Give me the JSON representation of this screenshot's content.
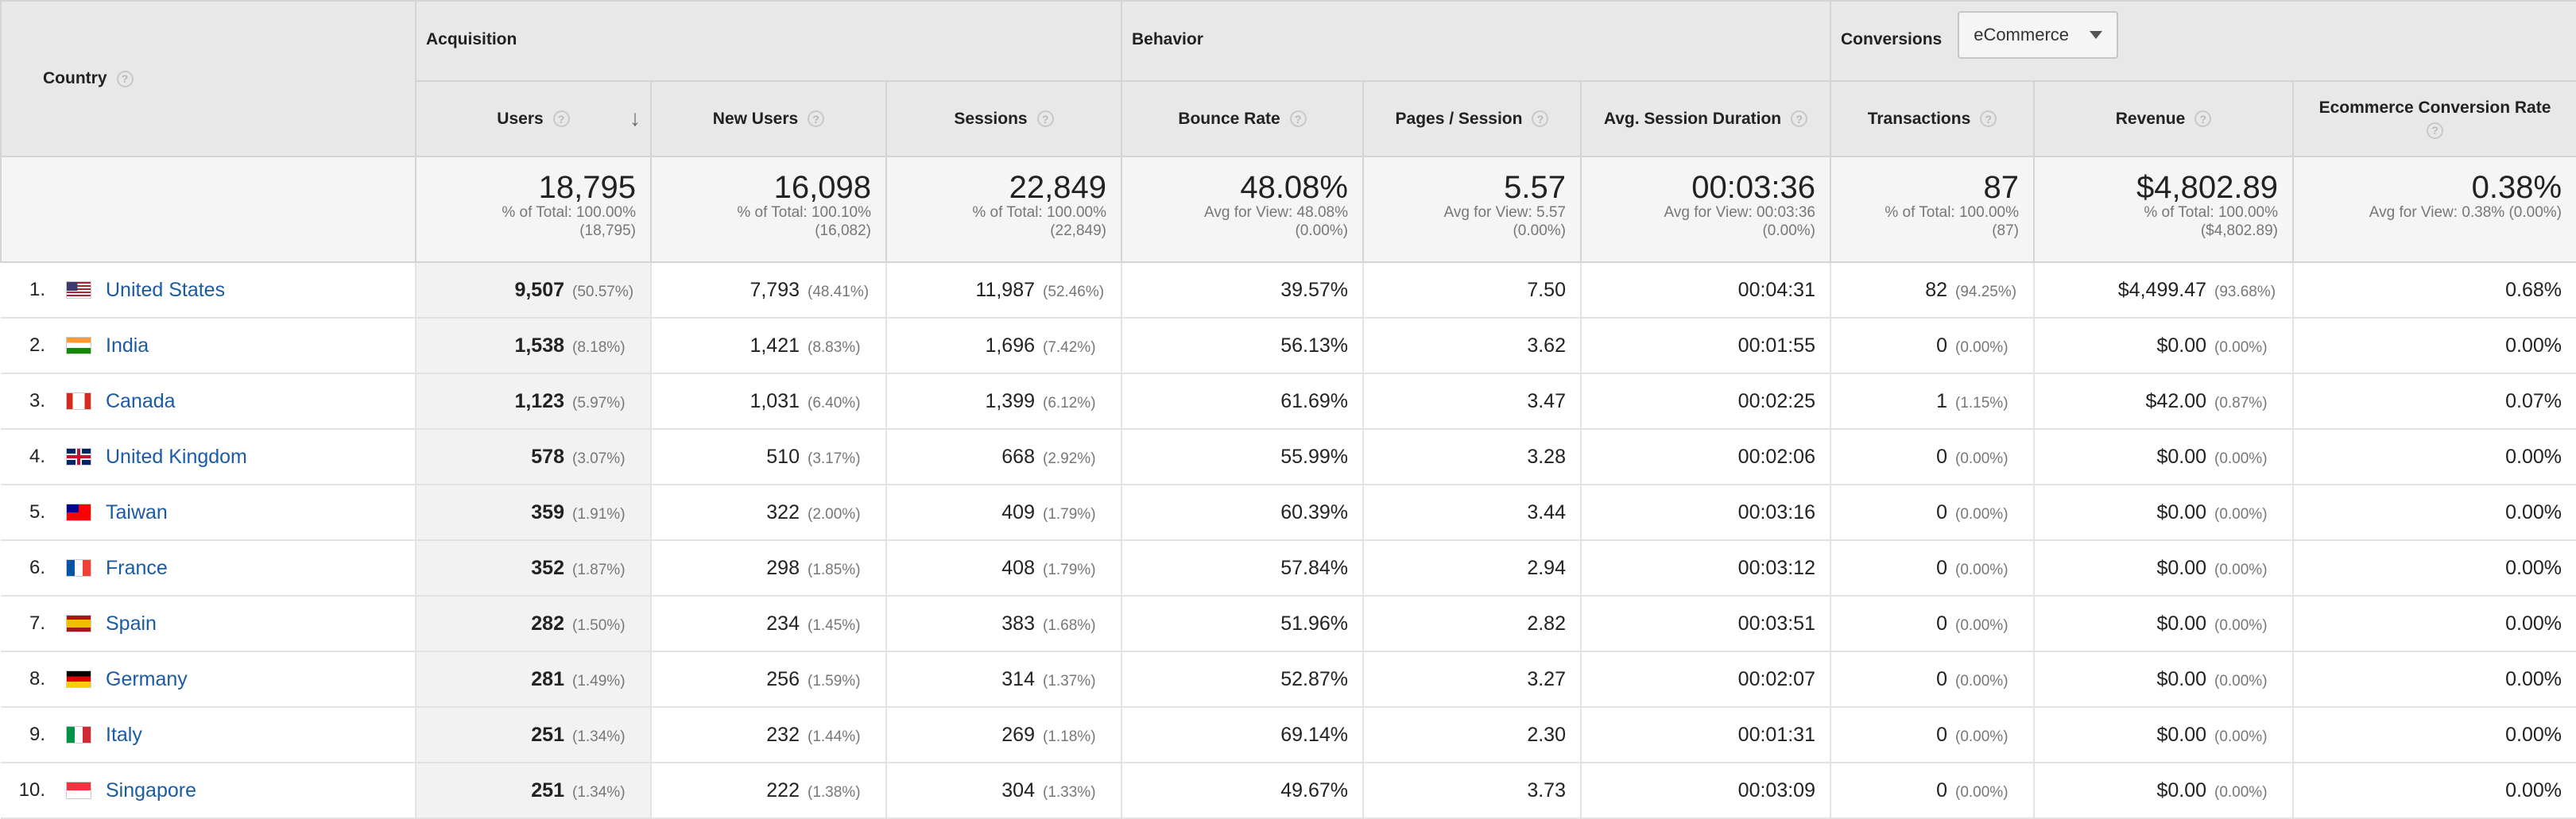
{
  "headers": {
    "country": "Country",
    "acquisition": "Acquisition",
    "behavior": "Behavior",
    "conversions": "Conversions",
    "conversion_select": "eCommerce",
    "help_glyph": "?",
    "sort_glyph": "↓",
    "metrics": {
      "users": "Users",
      "new_users": "New Users",
      "sessions": "Sessions",
      "bounce_rate": "Bounce Rate",
      "pages_session": "Pages / Session",
      "avg_session_duration": "Avg. Session Duration",
      "transactions": "Transactions",
      "revenue": "Revenue",
      "ecr": "Ecommerce Conversion Rate"
    }
  },
  "totals": {
    "users": {
      "value": "18,795",
      "sub1": "% of Total: 100.00%",
      "sub2": "(18,795)"
    },
    "new_users": {
      "value": "16,098",
      "sub1": "% of Total: 100.10%",
      "sub2": "(16,082)"
    },
    "sessions": {
      "value": "22,849",
      "sub1": "% of Total: 100.00%",
      "sub2": "(22,849)"
    },
    "bounce_rate": {
      "value": "48.08%",
      "sub1": "Avg for View: 48.08%",
      "sub2": "(0.00%)"
    },
    "pages_session": {
      "value": "5.57",
      "sub1": "Avg for View: 5.57",
      "sub2": "(0.00%)"
    },
    "avg_session_duration": {
      "value": "00:03:36",
      "sub1": "Avg for View: 00:03:36",
      "sub2": "(0.00%)"
    },
    "transactions": {
      "value": "87",
      "sub1": "% of Total: 100.00%",
      "sub2": "(87)"
    },
    "revenue": {
      "value": "$4,802.89",
      "sub1": "% of Total: 100.00%",
      "sub2": "($4,802.89)"
    },
    "ecr": {
      "value": "0.38%",
      "sub1": "Avg for View: 0.38% (0.00%)",
      "sub2": ""
    }
  },
  "rows": [
    {
      "index": "1.",
      "country": "United States",
      "flag": "us",
      "users": "9,507",
      "users_pct": "(50.57%)",
      "new_users": "7,793",
      "new_users_pct": "(48.41%)",
      "sessions": "11,987",
      "sessions_pct": "(52.46%)",
      "bounce_rate": "39.57%",
      "pages_session": "7.50",
      "avg_session_duration": "00:04:31",
      "transactions": "82",
      "transactions_pct": "(94.25%)",
      "revenue": "$4,499.47",
      "revenue_pct": "(93.68%)",
      "ecr": "0.68%"
    },
    {
      "index": "2.",
      "country": "India",
      "flag": "in",
      "users": "1,538",
      "users_pct": "(8.18%)",
      "new_users": "1,421",
      "new_users_pct": "(8.83%)",
      "sessions": "1,696",
      "sessions_pct": "(7.42%)",
      "bounce_rate": "56.13%",
      "pages_session": "3.62",
      "avg_session_duration": "00:01:55",
      "transactions": "0",
      "transactions_pct": "(0.00%)",
      "revenue": "$0.00",
      "revenue_pct": "(0.00%)",
      "ecr": "0.00%"
    },
    {
      "index": "3.",
      "country": "Canada",
      "flag": "ca",
      "users": "1,123",
      "users_pct": "(5.97%)",
      "new_users": "1,031",
      "new_users_pct": "(6.40%)",
      "sessions": "1,399",
      "sessions_pct": "(6.12%)",
      "bounce_rate": "61.69%",
      "pages_session": "3.47",
      "avg_session_duration": "00:02:25",
      "transactions": "1",
      "transactions_pct": "(1.15%)",
      "revenue": "$42.00",
      "revenue_pct": "(0.87%)",
      "ecr": "0.07%"
    },
    {
      "index": "4.",
      "country": "United Kingdom",
      "flag": "gb",
      "users": "578",
      "users_pct": "(3.07%)",
      "new_users": "510",
      "new_users_pct": "(3.17%)",
      "sessions": "668",
      "sessions_pct": "(2.92%)",
      "bounce_rate": "55.99%",
      "pages_session": "3.28",
      "avg_session_duration": "00:02:06",
      "transactions": "0",
      "transactions_pct": "(0.00%)",
      "revenue": "$0.00",
      "revenue_pct": "(0.00%)",
      "ecr": "0.00%"
    },
    {
      "index": "5.",
      "country": "Taiwan",
      "flag": "tw",
      "users": "359",
      "users_pct": "(1.91%)",
      "new_users": "322",
      "new_users_pct": "(2.00%)",
      "sessions": "409",
      "sessions_pct": "(1.79%)",
      "bounce_rate": "60.39%",
      "pages_session": "3.44",
      "avg_session_duration": "00:03:16",
      "transactions": "0",
      "transactions_pct": "(0.00%)",
      "revenue": "$0.00",
      "revenue_pct": "(0.00%)",
      "ecr": "0.00%"
    },
    {
      "index": "6.",
      "country": "France",
      "flag": "fr",
      "users": "352",
      "users_pct": "(1.87%)",
      "new_users": "298",
      "new_users_pct": "(1.85%)",
      "sessions": "408",
      "sessions_pct": "(1.79%)",
      "bounce_rate": "57.84%",
      "pages_session": "2.94",
      "avg_session_duration": "00:03:12",
      "transactions": "0",
      "transactions_pct": "(0.00%)",
      "revenue": "$0.00",
      "revenue_pct": "(0.00%)",
      "ecr": "0.00%"
    },
    {
      "index": "7.",
      "country": "Spain",
      "flag": "es",
      "users": "282",
      "users_pct": "(1.50%)",
      "new_users": "234",
      "new_users_pct": "(1.45%)",
      "sessions": "383",
      "sessions_pct": "(1.68%)",
      "bounce_rate": "51.96%",
      "pages_session": "2.82",
      "avg_session_duration": "00:03:51",
      "transactions": "0",
      "transactions_pct": "(0.00%)",
      "revenue": "$0.00",
      "revenue_pct": "(0.00%)",
      "ecr": "0.00%"
    },
    {
      "index": "8.",
      "country": "Germany",
      "flag": "de",
      "users": "281",
      "users_pct": "(1.49%)",
      "new_users": "256",
      "new_users_pct": "(1.59%)",
      "sessions": "314",
      "sessions_pct": "(1.37%)",
      "bounce_rate": "52.87%",
      "pages_session": "3.27",
      "avg_session_duration": "00:02:07",
      "transactions": "0",
      "transactions_pct": "(0.00%)",
      "revenue": "$0.00",
      "revenue_pct": "(0.00%)",
      "ecr": "0.00%"
    },
    {
      "index": "9.",
      "country": "Italy",
      "flag": "it",
      "users": "251",
      "users_pct": "(1.34%)",
      "new_users": "232",
      "new_users_pct": "(1.44%)",
      "sessions": "269",
      "sessions_pct": "(1.18%)",
      "bounce_rate": "69.14%",
      "pages_session": "2.30",
      "avg_session_duration": "00:01:31",
      "transactions": "0",
      "transactions_pct": "(0.00%)",
      "revenue": "$0.00",
      "revenue_pct": "(0.00%)",
      "ecr": "0.00%"
    },
    {
      "index": "10.",
      "country": "Singapore",
      "flag": "sg",
      "users": "251",
      "users_pct": "(1.34%)",
      "new_users": "222",
      "new_users_pct": "(1.38%)",
      "sessions": "304",
      "sessions_pct": "(1.33%)",
      "bounce_rate": "49.67%",
      "pages_session": "3.73",
      "avg_session_duration": "00:03:09",
      "transactions": "0",
      "transactions_pct": "(0.00%)",
      "revenue": "$0.00",
      "revenue_pct": "(0.00%)",
      "ecr": "0.00%"
    }
  ],
  "colors": {
    "link": "#1a5aa6",
    "header_bg": "#e8e8e8",
    "totals_bg": "#f5f5f5",
    "muted": "#777777"
  }
}
